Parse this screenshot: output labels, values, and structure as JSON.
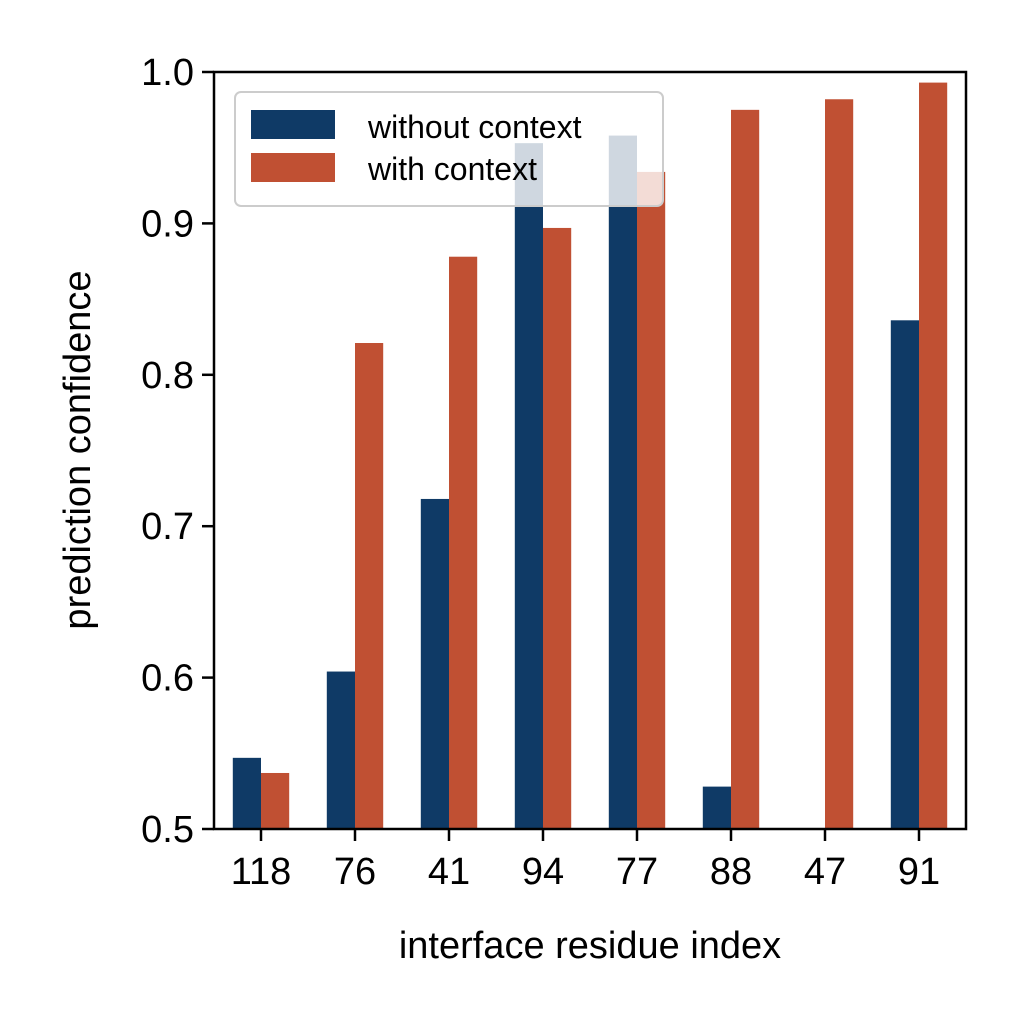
{
  "chart_data": {
    "type": "bar",
    "xlabel": "interface residue index",
    "ylabel": "prediction confidence",
    "categories": [
      "118",
      "76",
      "41",
      "94",
      "77",
      "88",
      "47",
      "91"
    ],
    "series": [
      {
        "name": "without context",
        "color": "#0f3a66",
        "values": [
          0.547,
          0.604,
          0.718,
          0.953,
          0.958,
          0.528,
          0.5,
          0.836
        ]
      },
      {
        "name": "with context",
        "color": "#c05033",
        "values": [
          0.537,
          0.821,
          0.878,
          0.897,
          0.934,
          0.975,
          0.982,
          0.993
        ]
      }
    ],
    "ylim": [
      0.5,
      1.0
    ],
    "yticks": [
      "0.5",
      "0.6",
      "0.7",
      "0.8",
      "0.9",
      "1.0"
    ],
    "grid": false,
    "legend_position": "top-left"
  }
}
